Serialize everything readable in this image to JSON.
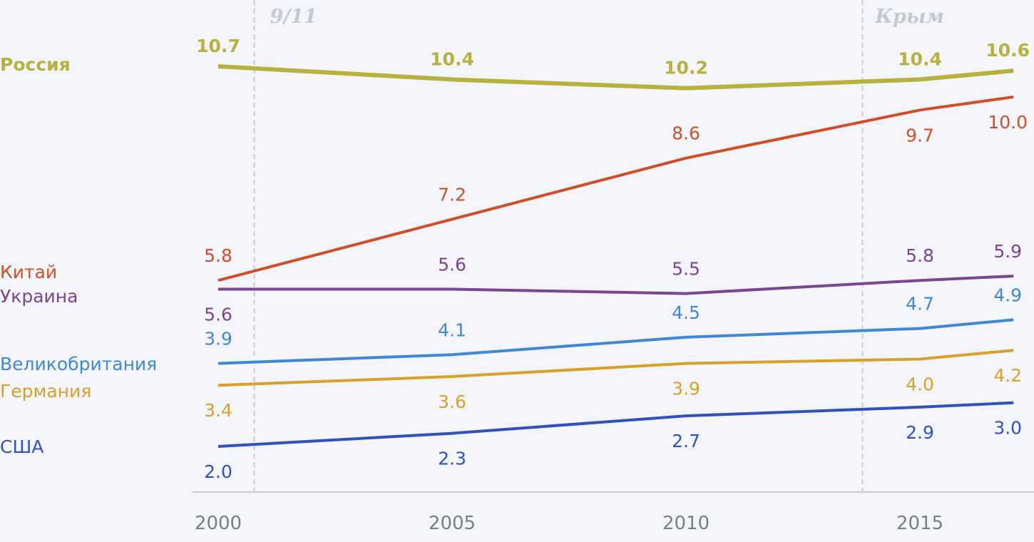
{
  "chart_data": {
    "type": "line",
    "title": "",
    "xlabel": "",
    "ylabel": "",
    "x": [
      2000,
      2005,
      2010,
      2015,
      2017
    ],
    "x_ticks": [
      "2000",
      "2005",
      "2010",
      "2015"
    ],
    "grid": false,
    "legend": "left, inline labels",
    "series": [
      {
        "name": "Россия",
        "color": "#b5b23e",
        "values": [
          10.7,
          10.4,
          10.2,
          10.4,
          10.6
        ],
        "labels": [
          "10.7",
          "10.4",
          "10.2",
          "10.4",
          "10.6"
        ]
      },
      {
        "name": "Китай",
        "color": "#d04f27",
        "values": [
          5.8,
          7.2,
          8.6,
          9.7,
          10.0
        ],
        "labels": [
          "5.8",
          "7.2",
          "8.6",
          "9.7",
          "10.0"
        ]
      },
      {
        "name": "Украина",
        "color": "#7b4592",
        "values": [
          5.6,
          5.6,
          5.5,
          5.8,
          5.9
        ],
        "labels": [
          "5.6",
          "5.6",
          "5.5",
          "5.8",
          "5.9"
        ]
      },
      {
        "name": "Великобритания",
        "color": "#3f88d8",
        "values": [
          3.9,
          4.1,
          4.5,
          4.7,
          4.9
        ],
        "labels": [
          "3.9",
          "4.1",
          "4.5",
          "4.7",
          "4.9"
        ]
      },
      {
        "name": "Германия",
        "color": "#d9a12a",
        "values": [
          3.4,
          3.6,
          3.9,
          4.0,
          4.2
        ],
        "labels": [
          "3.4",
          "3.6",
          "3.9",
          "4.0",
          "4.2"
        ]
      },
      {
        "name": "США",
        "color": "#3052bd",
        "values": [
          2.0,
          2.3,
          2.7,
          2.9,
          3.0
        ],
        "labels": [
          "2.0",
          "2.3",
          "2.7",
          "2.9",
          "3.0"
        ]
      }
    ],
    "annotations": [
      {
        "text": "9/11",
        "x": 2001
      },
      {
        "text": "Крым",
        "x": 2014
      }
    ]
  }
}
